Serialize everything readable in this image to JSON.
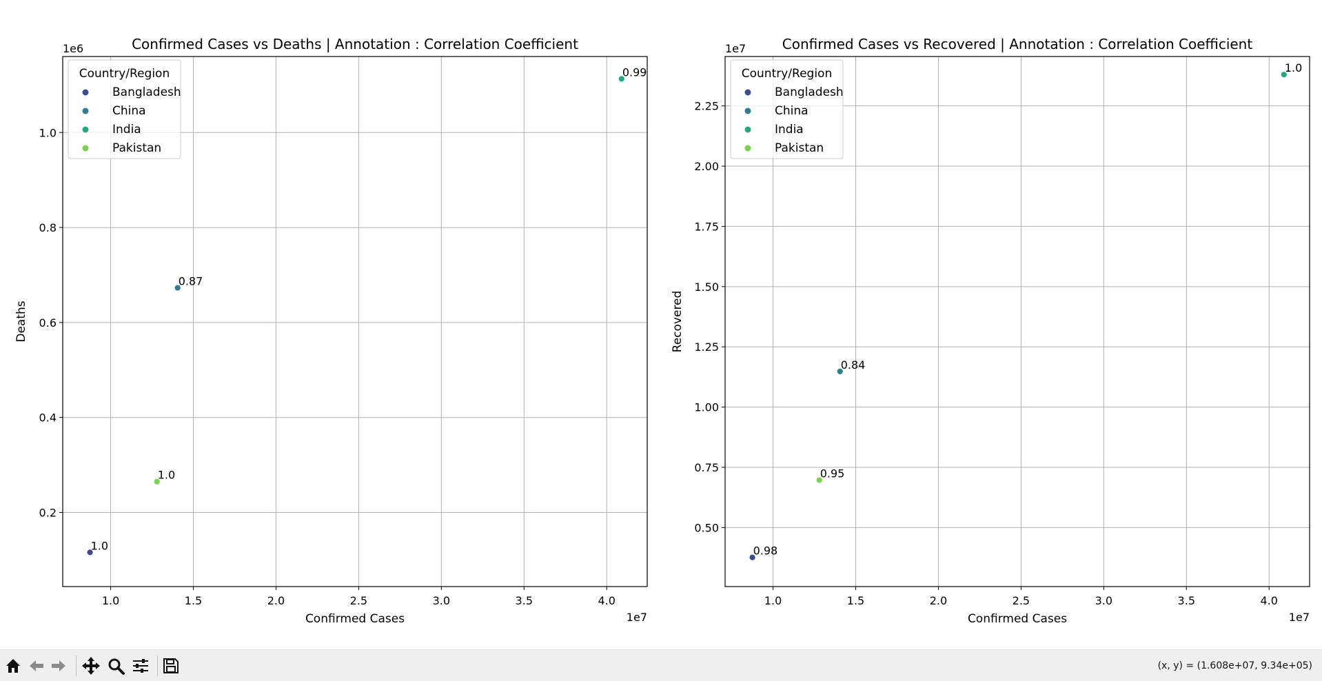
{
  "chart_data": [
    {
      "type": "scatter",
      "title": "Confirmed Cases vs Deaths | Annotation : Correlation Coefficient",
      "xlabel": "Confirmed Cases",
      "ylabel": "Deaths",
      "x_offset_label": "1e7",
      "y_offset_label": "1e6",
      "xlim": [
        0.71,
        4.245
      ],
      "ylim": [
        0.044,
        1.16
      ],
      "xticks": [
        1.0,
        1.5,
        2.0,
        2.5,
        3.0,
        3.5,
        4.0
      ],
      "xtick_labels": [
        "1.0",
        "1.5",
        "2.0",
        "2.5",
        "3.0",
        "3.5",
        "4.0"
      ],
      "yticks": [
        0.2,
        0.4,
        0.6,
        0.8,
        1.0
      ],
      "ytick_labels": [
        "0.2",
        "0.4",
        "0.6",
        "0.8",
        "1.0"
      ],
      "grid": true,
      "legend_title": "Country/Region",
      "legend_loc": "top-left",
      "points": [
        {
          "name": "Bangladesh",
          "x": 0.875,
          "y": 0.116,
          "label": "1.0",
          "color": "#3b4d8c"
        },
        {
          "name": "China",
          "x": 1.405,
          "y": 0.673,
          "label": "0.87",
          "color": "#2d7e8e"
        },
        {
          "name": "India",
          "x": 4.09,
          "y": 1.113,
          "label": "0.99",
          "color": "#24a884"
        },
        {
          "name": "Pakistan",
          "x": 1.28,
          "y": 0.265,
          "label": "1.0",
          "color": "#7ad151"
        }
      ]
    },
    {
      "type": "scatter",
      "title": "Confirmed Cases vs Recovered | Annotation : Correlation Coefficient",
      "xlabel": "Confirmed Cases",
      "ylabel": "Recovered",
      "x_offset_label": "1e7",
      "y_offset_label": "1e7",
      "xlim": [
        0.71,
        4.245
      ],
      "ylim": [
        0.255,
        2.455
      ],
      "xticks": [
        1.0,
        1.5,
        2.0,
        2.5,
        3.0,
        3.5,
        4.0
      ],
      "xtick_labels": [
        "1.0",
        "1.5",
        "2.0",
        "2.5",
        "3.0",
        "3.5",
        "4.0"
      ],
      "yticks": [
        0.5,
        0.75,
        1.0,
        1.25,
        1.5,
        1.75,
        2.0,
        2.25
      ],
      "ytick_labels": [
        "0.50",
        "0.75",
        "1.00",
        "1.25",
        "1.50",
        "1.75",
        "2.00",
        "2.25"
      ],
      "grid": true,
      "legend_title": "Country/Region",
      "legend_loc": "top-left",
      "points": [
        {
          "name": "Bangladesh",
          "x": 0.875,
          "y": 0.376,
          "label": "0.98",
          "color": "#3b4d8c"
        },
        {
          "name": "China",
          "x": 1.405,
          "y": 1.148,
          "label": "0.84",
          "color": "#2d7e8e"
        },
        {
          "name": "India",
          "x": 4.09,
          "y": 2.38,
          "label": "1.0",
          "color": "#24a884"
        },
        {
          "name": "Pakistan",
          "x": 1.28,
          "y": 0.697,
          "label": "0.95",
          "color": "#7ad151"
        }
      ]
    }
  ],
  "toolbar": {
    "buttons": [
      "home-icon",
      "back-icon",
      "forward-icon",
      "pan-icon",
      "zoom-icon",
      "configure-icon",
      "save-icon"
    ],
    "coords": "(x, y) = (1.608e+07, 9.34e+05)"
  }
}
